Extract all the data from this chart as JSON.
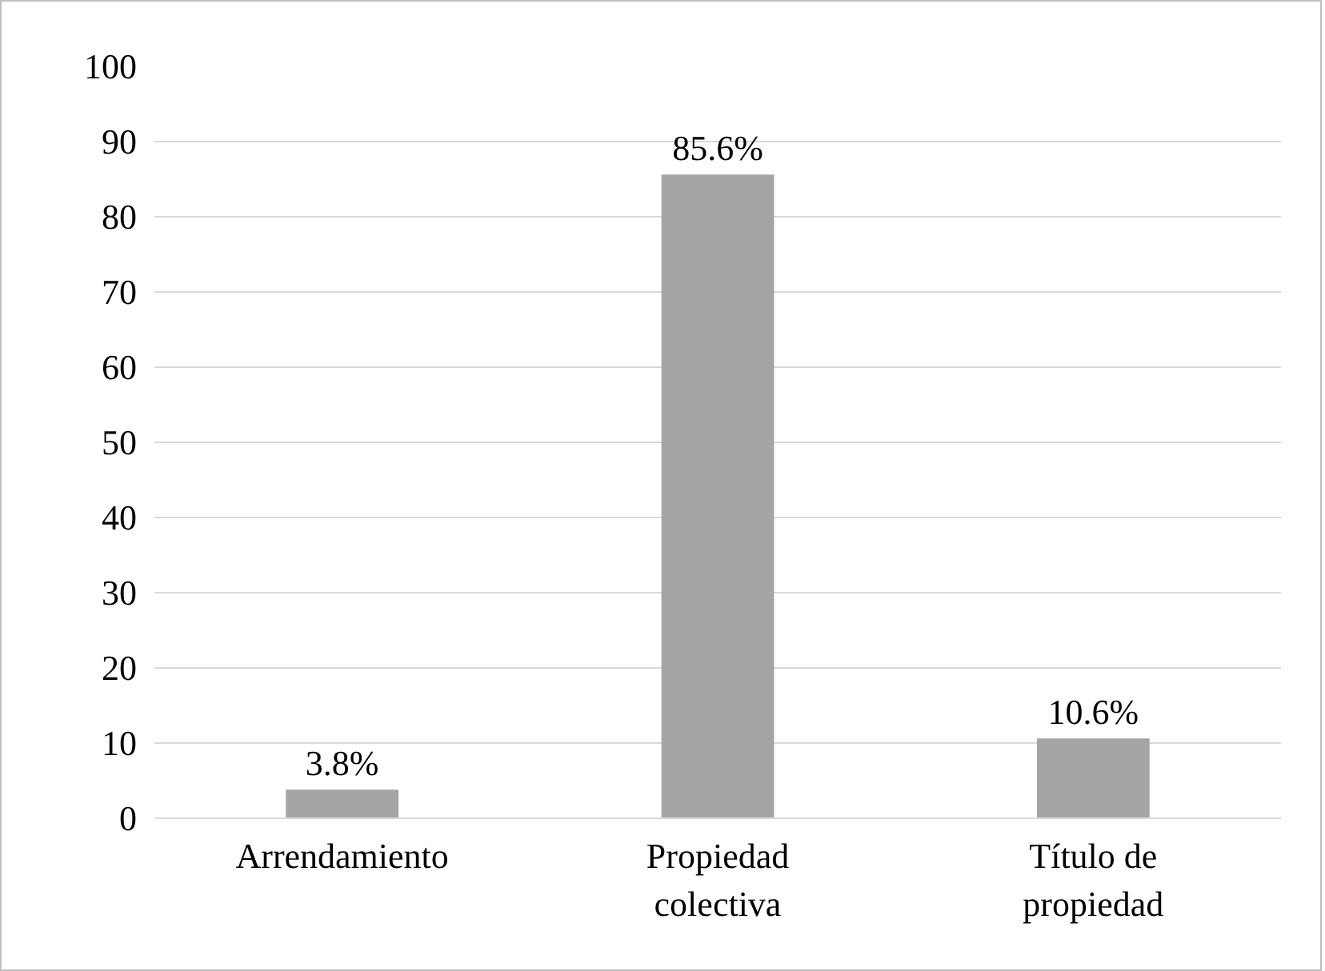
{
  "chart_data": {
    "type": "bar",
    "categories": [
      "Arrendamiento",
      "Propiedad colectiva",
      "Título de propiedad"
    ],
    "values": [
      3.8,
      85.6,
      10.6
    ],
    "value_labels": [
      "3.8%",
      "85.6%",
      "10.6%"
    ],
    "color": "#a5a5a5",
    "ylim": [
      0,
      100
    ],
    "yticks": [
      0,
      10,
      20,
      30,
      40,
      50,
      60,
      70,
      80,
      90,
      100
    ],
    "grid": "y"
  }
}
